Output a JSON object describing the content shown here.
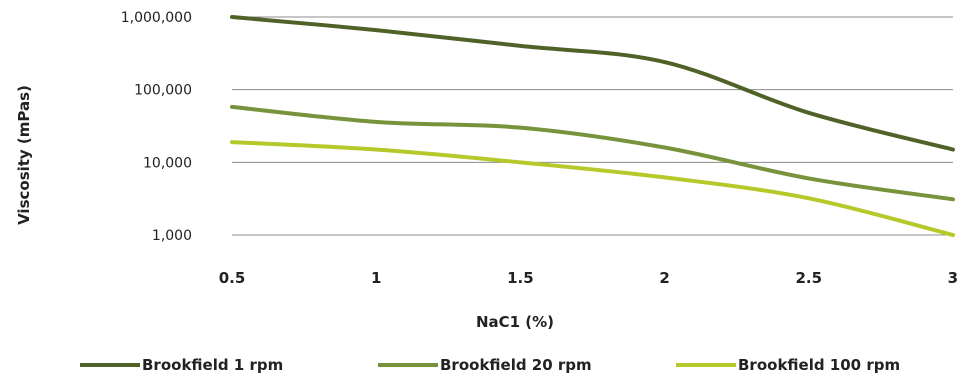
{
  "chart_data": {
    "type": "line",
    "title": "",
    "xlabel": "NaC1 (%)",
    "ylabel": "Viscosity (mPas)",
    "y_scale": "log",
    "ylim": [
      1000,
      1000000
    ],
    "xlim": [
      0.5,
      3
    ],
    "grid": "horizontal",
    "legend_position": "bottom",
    "x_ticks": [
      "0.5",
      "1",
      "1.5",
      "2",
      "2.5",
      "3"
    ],
    "y_ticks": [
      "1,000",
      "10,000",
      "100,000",
      "1,000,000"
    ],
    "x": [
      0.5,
      1,
      1.5,
      2,
      2.5,
      3
    ],
    "series": [
      {
        "name": "Brookfield 1 rpm",
        "color": "#4f6228",
        "values": [
          1000000,
          660000,
          400000,
          240000,
          48000,
          15000
        ]
      },
      {
        "name": "Brookfield 20 rpm",
        "color": "#77933c",
        "values": [
          58000,
          36000,
          30000,
          16000,
          6000,
          3100
        ]
      },
      {
        "name": "Brookfield 100 rpm",
        "color": "#b5c92a",
        "values": [
          19000,
          15000,
          10000,
          6200,
          3200,
          1000
        ]
      }
    ]
  }
}
